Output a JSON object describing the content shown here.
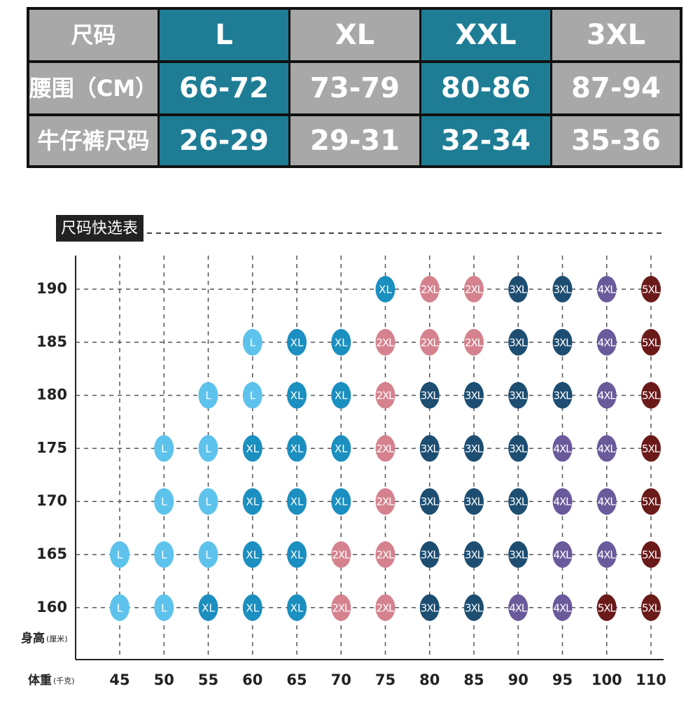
{
  "size_table": {
    "header": [
      "尺码",
      "L",
      "XL",
      "XXL",
      "3XL"
    ],
    "rows": [
      [
        "腰围（CM）",
        "66-72",
        "73-79",
        "80-86",
        "87-94"
      ],
      [
        "牛仔裤尺码",
        "26-29",
        "29-31",
        "32-34",
        "35-36"
      ]
    ]
  },
  "quick_chart": {
    "title": "尺码快选表",
    "y_label": "身高",
    "y_unit": "(厘米)",
    "x_label": "体重",
    "x_unit": "(千克)",
    "heights": [
      190,
      185,
      180,
      175,
      170,
      165,
      160
    ],
    "weights": [
      45,
      50,
      55,
      60,
      65,
      70,
      75,
      80,
      85,
      90,
      95,
      100,
      110
    ],
    "cells": [
      [
        null,
        null,
        null,
        null,
        null,
        null,
        "XL",
        "2XL",
        "2XL",
        "3XL",
        "3XL",
        "4XL",
        "5XL"
      ],
      [
        null,
        null,
        null,
        "L",
        "XL",
        "XL",
        "2XL",
        "2XL",
        "2XL",
        "3XL",
        "3XL",
        "4XL",
        "5XL"
      ],
      [
        null,
        null,
        "L",
        "L",
        "XL",
        "XL",
        "2XL",
        "3XL",
        "3XL",
        "3XL",
        "3XL",
        "4XL",
        "5XL"
      ],
      [
        null,
        "L",
        "L",
        "XL",
        "XL",
        "XL",
        "2XL",
        "3XL",
        "3XL",
        "3XL",
        "4XL",
        "4XL",
        "5XL"
      ],
      [
        null,
        "L",
        "L",
        "XL",
        "XL",
        "XL",
        "2XL",
        "3XL",
        "3XL",
        "3XL",
        "4XL",
        "4XL",
        "5XL"
      ],
      [
        "L",
        "L",
        "L",
        "XL",
        "XL",
        "2XL",
        "2XL",
        "3XL",
        "3XL",
        "3XL",
        "4XL",
        "4XL",
        "5XL"
      ],
      [
        "L",
        "L",
        "XL",
        "XL",
        "XL",
        "2XL",
        "2XL",
        "3XL",
        "3XL",
        "4XL",
        "4XL",
        "5XL",
        "5XL"
      ]
    ],
    "colors": {
      "L": "#5ec3ec",
      "XL": "#1b8fc0",
      "2XL": "#d5828e",
      "3XL": "#1d4e72",
      "4XL": "#6a5a9c",
      "5XL": "#6b1a1a"
    }
  }
}
